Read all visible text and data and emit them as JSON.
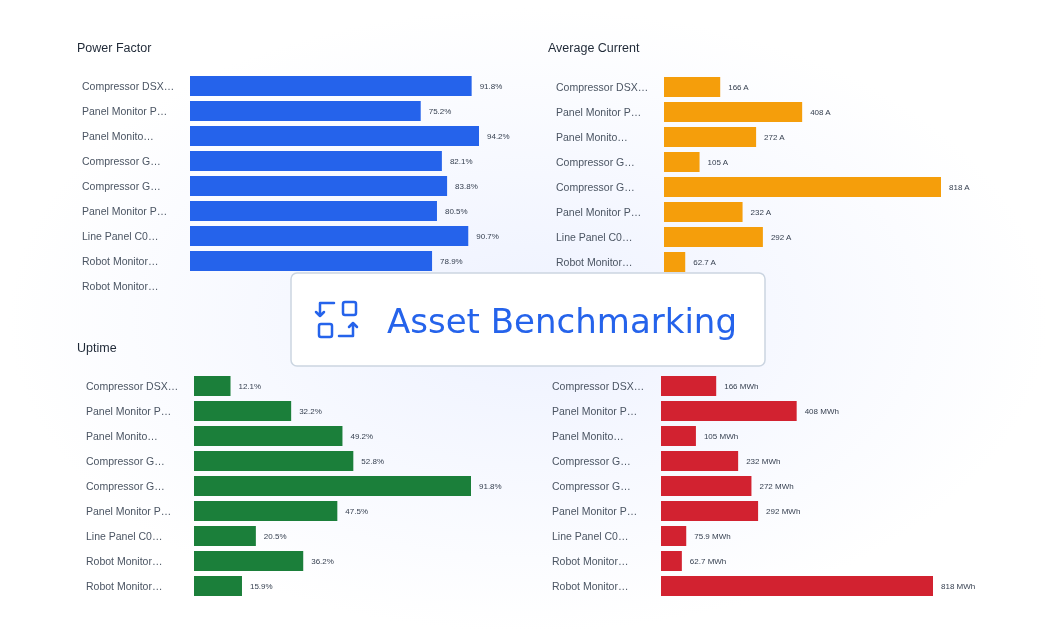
{
  "chart_data": [
    {
      "type": "bar",
      "orientation": "horizontal",
      "title": "Power Factor",
      "color": "#2563eb",
      "categories": [
        "Compressor DSX…",
        "Panel Monitor P…",
        "Panel Monito…",
        "Compressor G…",
        "Compressor G…",
        "Panel Monitor P…",
        "Line Panel C0…",
        "Robot Monitor…",
        "Robot Monitor…"
      ],
      "values": [
        91.8,
        75.2,
        94.2,
        82.1,
        83.8,
        80.5,
        90.7,
        78.9,
        null
      ],
      "value_labels": [
        "91.8%",
        "75.2%",
        "94.2%",
        "82.1%",
        "83.8%",
        "80.5%",
        "90.7%",
        "78.9%",
        null
      ]
    },
    {
      "type": "bar",
      "orientation": "horizontal",
      "title": "Average Current",
      "color": "#f59e0b",
      "categories": [
        "Compressor DSX…",
        "Panel Monitor P…",
        "Panel Monito…",
        "Compressor G…",
        "Compressor G…",
        "Panel Monitor P…",
        "Line Panel C0…",
        "Robot Monitor…"
      ],
      "values": [
        166,
        408,
        272,
        105,
        818,
        232,
        292,
        62.7
      ],
      "value_labels": [
        "166 A",
        "408 A",
        "272 A",
        "105 A",
        "818 A",
        "232 A",
        "292 A",
        "62.7 A"
      ]
    },
    {
      "type": "bar",
      "orientation": "horizontal",
      "title": "Uptime",
      "color": "#1b7f3a",
      "categories": [
        "Compressor DSX…",
        "Panel Monitor P…",
        "Panel Monito…",
        "Compressor G…",
        "Compressor G…",
        "Panel Monitor P…",
        "Line Panel C0…",
        "Robot Monitor…",
        "Robot Monitor…"
      ],
      "values": [
        12.1,
        32.2,
        49.2,
        52.8,
        91.8,
        47.5,
        20.5,
        36.2,
        15.9
      ],
      "value_labels": [
        "12.1%",
        "32.2%",
        "49.2%",
        "52.8%",
        "91.8%",
        "47.5%",
        "20.5%",
        "36.2%",
        "15.9%"
      ]
    },
    {
      "type": "bar",
      "orientation": "horizontal",
      "color": "#d22230",
      "categories": [
        "Compressor DSX…",
        "Panel Monitor P…",
        "Panel Monito…",
        "Compressor G…",
        "Compressor G…",
        "Panel Monitor P…",
        "Line Panel C0…",
        "Robot Monitor…",
        "Robot Monitor…"
      ],
      "values": [
        166,
        408,
        105,
        232,
        272,
        292,
        75.9,
        62.7,
        818
      ],
      "value_labels": [
        "166 MWh",
        "408 MWh",
        "105 MWh",
        "232 MWh",
        "272 MWh",
        "292 MWh",
        "75.9 MWh",
        "62.7 MWh",
        "818 MWh"
      ]
    },
    {
      "type": "other",
      "title": "Asset Benchmarking"
    }
  ]
}
